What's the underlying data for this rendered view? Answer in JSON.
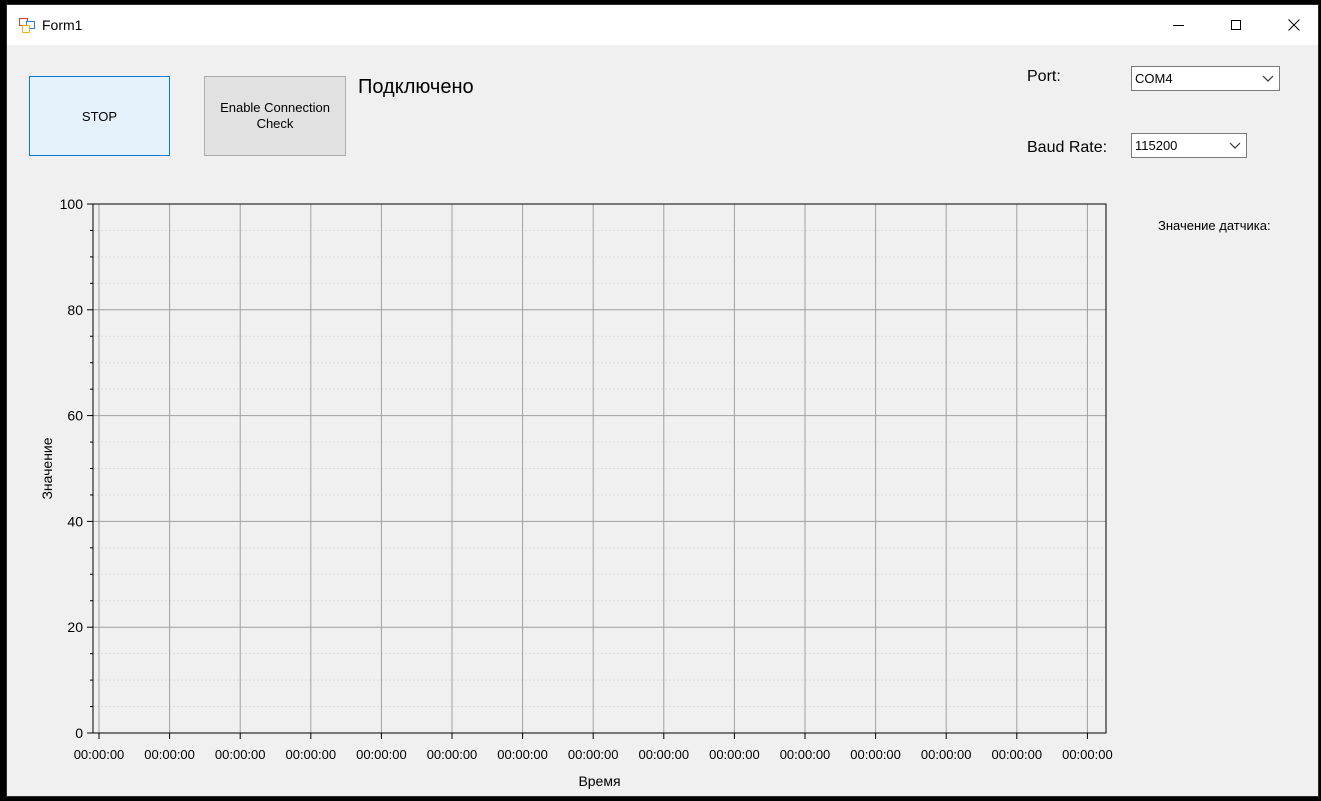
{
  "window": {
    "title": "Form1"
  },
  "toolbar": {
    "stop_label": "STOP",
    "connection_check_label": "Enable Connection Check"
  },
  "status": {
    "text": "Подключено"
  },
  "settings": {
    "port_label": "Port:",
    "port_value": "COM4",
    "baud_label": "Baud Rate:",
    "baud_value": "115200"
  },
  "sensor": {
    "label": "Значение датчика:"
  },
  "icons": {
    "app": "windows-form-icon",
    "minimize": "minimize-icon",
    "maximize": "maximize-icon",
    "close": "close-icon",
    "dropdown": "chevron-down-icon"
  },
  "chart_data": {
    "type": "line",
    "title": "",
    "xlabel": "Время",
    "ylabel": "Значение",
    "ylim": [
      0,
      100
    ],
    "y_ticks": [
      0,
      20,
      40,
      60,
      80,
      100
    ],
    "x_tick_labels": [
      "00:00:00",
      "00:00:00",
      "00:00:00",
      "00:00:00",
      "00:00:00",
      "00:00:00",
      "00:00:00",
      "00:00:00",
      "00:00:00",
      "00:00:00",
      "00:00:00",
      "00:00:00",
      "00:00:00",
      "00:00:00",
      "00:00:00"
    ],
    "series": [],
    "grid": true,
    "legend": "none"
  }
}
